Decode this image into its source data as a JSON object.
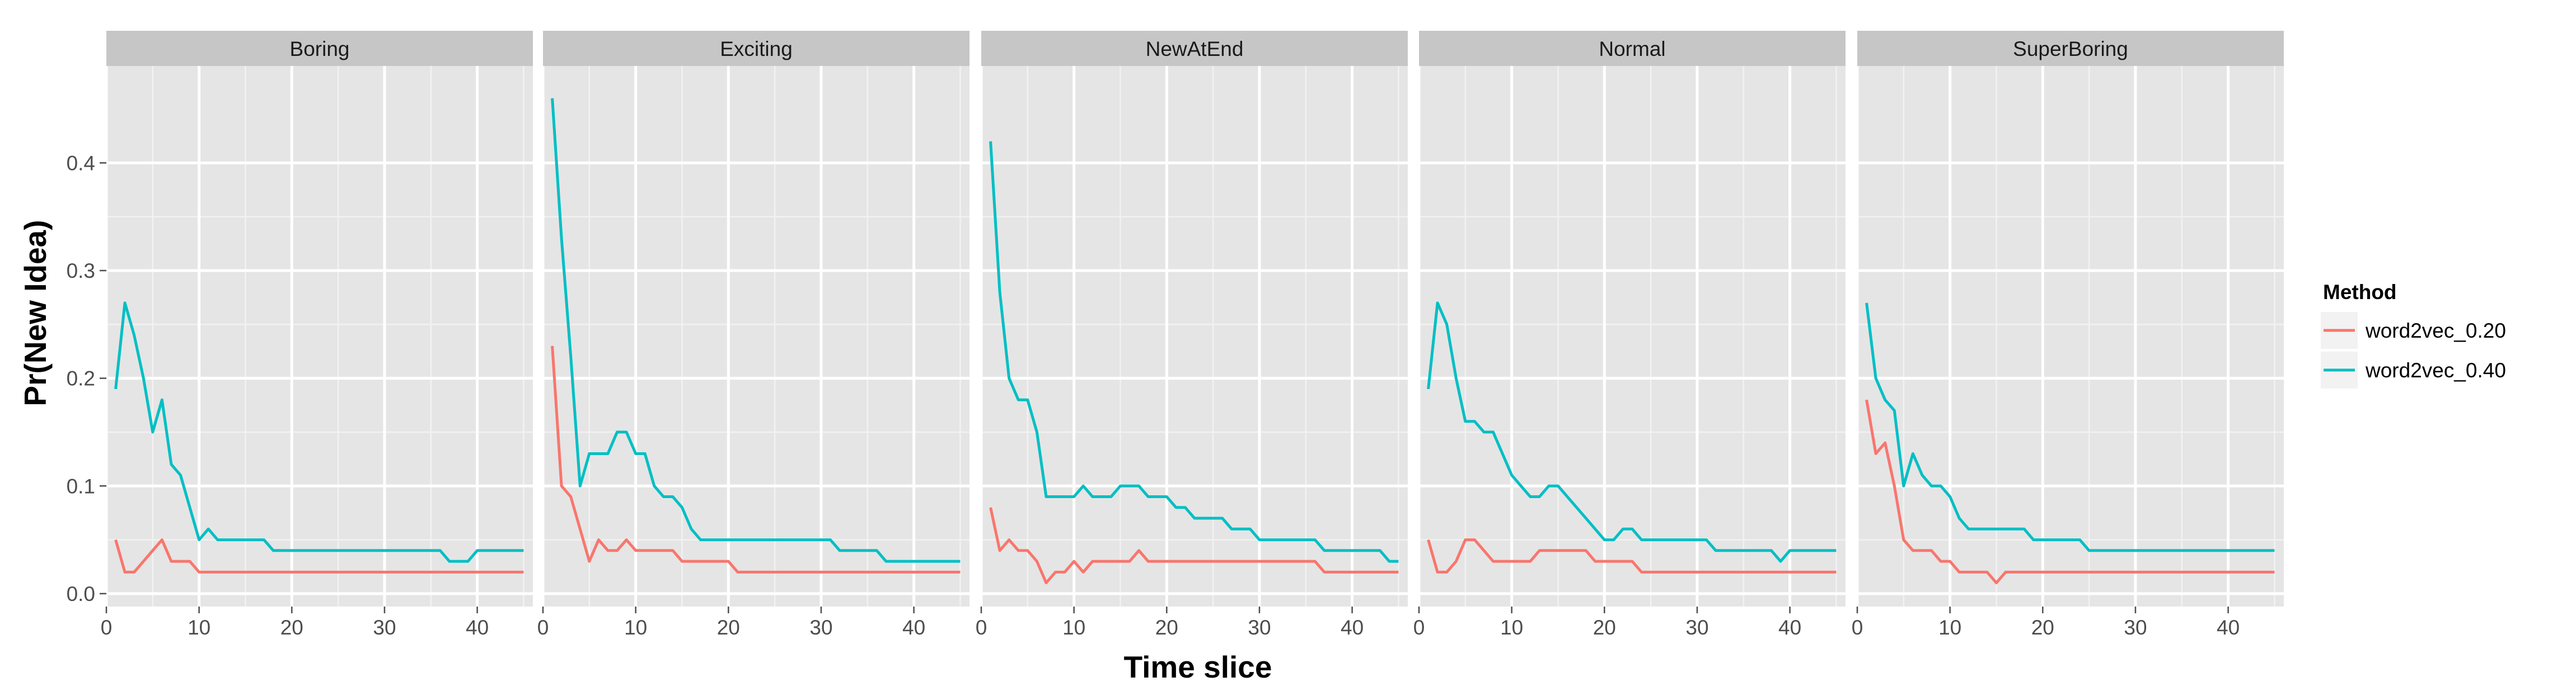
{
  "chart_data": {
    "type": "line",
    "xlabel": "Time slice",
    "ylabel": "Pr(New Idea)",
    "xlim": [
      0,
      46
    ],
    "ylim": [
      -0.012,
      0.49
    ],
    "x_ticks": [
      0,
      10,
      20,
      30,
      40
    ],
    "y_ticks": [
      0.0,
      0.1,
      0.2,
      0.3,
      0.4
    ],
    "x_tick_labels": [
      "0",
      "10",
      "20",
      "30",
      "40"
    ],
    "y_tick_labels": [
      "0.0",
      "0.1",
      "0.2",
      "0.3",
      "0.4"
    ],
    "grid": true,
    "legend": {
      "title": "Method",
      "placement": "right",
      "entries": [
        "word2vec_0.20",
        "word2vec_0.40"
      ]
    },
    "series_colors": {
      "word2vec_0.20": "#f8766d",
      "word2vec_0.40": "#00bfc4"
    },
    "panels": [
      {
        "title": "Boring",
        "series": [
          {
            "name": "word2vec_0.20",
            "x": [
              1,
              2,
              3,
              4,
              5,
              6,
              7,
              8,
              9,
              10,
              15,
              20,
              25,
              30,
              35,
              40,
              45
            ],
            "y": [
              0.05,
              0.02,
              0.02,
              0.03,
              0.04,
              0.05,
              0.03,
              0.03,
              0.03,
              0.02,
              0.02,
              0.02,
              0.02,
              0.02,
              0.02,
              0.02,
              0.02
            ]
          },
          {
            "name": "word2vec_0.40",
            "x": [
              1,
              2,
              3,
              4,
              5,
              6,
              7,
              8,
              9,
              10,
              11,
              12,
              15,
              17,
              18,
              20,
              25,
              30,
              33,
              36,
              37,
              38,
              39,
              40,
              45
            ],
            "y": [
              0.19,
              0.27,
              0.24,
              0.2,
              0.15,
              0.18,
              0.12,
              0.11,
              0.08,
              0.05,
              0.06,
              0.05,
              0.05,
              0.05,
              0.04,
              0.04,
              0.04,
              0.04,
              0.04,
              0.04,
              0.03,
              0.03,
              0.03,
              0.04,
              0.04
            ]
          }
        ]
      },
      {
        "title": "Exciting",
        "series": [
          {
            "name": "word2vec_0.20",
            "x": [
              1,
              2,
              3,
              4,
              5,
              6,
              7,
              8,
              9,
              10,
              12,
              14,
              15,
              16,
              19,
              20,
              21,
              25,
              30,
              35,
              40,
              45
            ],
            "y": [
              0.23,
              0.1,
              0.09,
              0.06,
              0.03,
              0.05,
              0.04,
              0.04,
              0.05,
              0.04,
              0.04,
              0.04,
              0.03,
              0.03,
              0.03,
              0.03,
              0.02,
              0.02,
              0.02,
              0.02,
              0.02,
              0.02
            ]
          },
          {
            "name": "word2vec_0.40",
            "x": [
              1,
              2,
              3,
              4,
              5,
              6,
              7,
              8,
              9,
              10,
              11,
              12,
              13,
              14,
              15,
              16,
              17,
              18,
              20,
              25,
              30,
              31,
              32,
              35,
              36,
              37,
              38,
              40,
              45
            ],
            "y": [
              0.46,
              0.33,
              0.22,
              0.1,
              0.13,
              0.13,
              0.13,
              0.15,
              0.15,
              0.13,
              0.13,
              0.1,
              0.09,
              0.09,
              0.08,
              0.06,
              0.05,
              0.05,
              0.05,
              0.05,
              0.05,
              0.05,
              0.04,
              0.04,
              0.04,
              0.03,
              0.03,
              0.03,
              0.03
            ]
          }
        ]
      },
      {
        "title": "NewAtEnd",
        "series": [
          {
            "name": "word2vec_0.20",
            "x": [
              1,
              2,
              3,
              4,
              5,
              6,
              7,
              8,
              9,
              10,
              11,
              12,
              13,
              15,
              16,
              17,
              18,
              20,
              25,
              30,
              35,
              36,
              37,
              40,
              45
            ],
            "y": [
              0.08,
              0.04,
              0.05,
              0.04,
              0.04,
              0.03,
              0.01,
              0.02,
              0.02,
              0.03,
              0.02,
              0.03,
              0.03,
              0.03,
              0.03,
              0.04,
              0.03,
              0.03,
              0.03,
              0.03,
              0.03,
              0.03,
              0.02,
              0.02,
              0.02
            ]
          },
          {
            "name": "word2vec_0.40",
            "x": [
              1,
              2,
              3,
              4,
              5,
              6,
              7,
              8,
              9,
              10,
              11,
              12,
              13,
              14,
              15,
              16,
              17,
              18,
              20,
              21,
              22,
              23,
              25,
              26,
              27,
              29,
              30,
              35,
              36,
              37,
              40,
              43,
              44,
              45
            ],
            "y": [
              0.42,
              0.28,
              0.2,
              0.18,
              0.18,
              0.15,
              0.09,
              0.09,
              0.09,
              0.09,
              0.1,
              0.09,
              0.09,
              0.09,
              0.1,
              0.1,
              0.1,
              0.09,
              0.09,
              0.08,
              0.08,
              0.07,
              0.07,
              0.07,
              0.06,
              0.06,
              0.05,
              0.05,
              0.05,
              0.04,
              0.04,
              0.04,
              0.03,
              0.03
            ]
          }
        ]
      },
      {
        "title": "Normal",
        "series": [
          {
            "name": "word2vec_0.20",
            "x": [
              1,
              2,
              3,
              4,
              5,
              6,
              7,
              8,
              10,
              12,
              13,
              14,
              15,
              16,
              17,
              18,
              19,
              20,
              21,
              22,
              23,
              24,
              25,
              30,
              35,
              40,
              45
            ],
            "y": [
              0.05,
              0.02,
              0.02,
              0.03,
              0.05,
              0.05,
              0.04,
              0.03,
              0.03,
              0.03,
              0.04,
              0.04,
              0.04,
              0.04,
              0.04,
              0.04,
              0.03,
              0.03,
              0.03,
              0.03,
              0.03,
              0.02,
              0.02,
              0.02,
              0.02,
              0.02,
              0.02
            ]
          },
          {
            "name": "word2vec_0.40",
            "x": [
              1,
              2,
              3,
              4,
              5,
              6,
              7,
              8,
              9,
              10,
              11,
              12,
              13,
              14,
              15,
              16,
              17,
              18,
              19,
              20,
              21,
              22,
              23,
              24,
              25,
              30,
              31,
              32,
              35,
              38,
              39,
              40,
              45
            ],
            "y": [
              0.19,
              0.27,
              0.25,
              0.2,
              0.16,
              0.16,
              0.15,
              0.15,
              0.13,
              0.11,
              0.1,
              0.09,
              0.09,
              0.1,
              0.1,
              0.09,
              0.08,
              0.07,
              0.06,
              0.05,
              0.05,
              0.06,
              0.06,
              0.05,
              0.05,
              0.05,
              0.05,
              0.04,
              0.04,
              0.04,
              0.03,
              0.04,
              0.04
            ]
          }
        ]
      },
      {
        "title": "SuperBoring",
        "series": [
          {
            "name": "word2vec_0.20",
            "x": [
              1,
              2,
              3,
              4,
              5,
              6,
              7,
              8,
              9,
              10,
              11,
              12,
              13,
              14,
              15,
              16,
              17,
              20,
              25,
              30,
              35,
              40,
              45
            ],
            "y": [
              0.18,
              0.13,
              0.14,
              0.1,
              0.05,
              0.04,
              0.04,
              0.04,
              0.03,
              0.03,
              0.02,
              0.02,
              0.02,
              0.02,
              0.01,
              0.02,
              0.02,
              0.02,
              0.02,
              0.02,
              0.02,
              0.02,
              0.02
            ]
          },
          {
            "name": "word2vec_0.40",
            "x": [
              1,
              2,
              3,
              4,
              5,
              6,
              7,
              8,
              9,
              10,
              11,
              12,
              15,
              18,
              19,
              20,
              24,
              25,
              30,
              35,
              40,
              45
            ],
            "y": [
              0.27,
              0.2,
              0.18,
              0.17,
              0.1,
              0.13,
              0.11,
              0.1,
              0.1,
              0.09,
              0.07,
              0.06,
              0.06,
              0.06,
              0.05,
              0.05,
              0.05,
              0.04,
              0.04,
              0.04,
              0.04,
              0.04
            ]
          }
        ]
      }
    ]
  }
}
